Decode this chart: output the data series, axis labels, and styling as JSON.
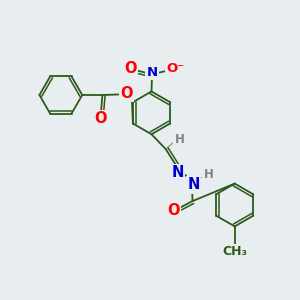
{
  "background_color": "#e8edf0",
  "bond_color": "#2d5a1b",
  "atom_colors": {
    "O": "#ff0000",
    "N": "#0000cc",
    "H": "#808080",
    "C": "#2d5a1b",
    "default": "#2d5a1b"
  },
  "figsize": [
    3.0,
    3.0
  ],
  "dpi": 100
}
